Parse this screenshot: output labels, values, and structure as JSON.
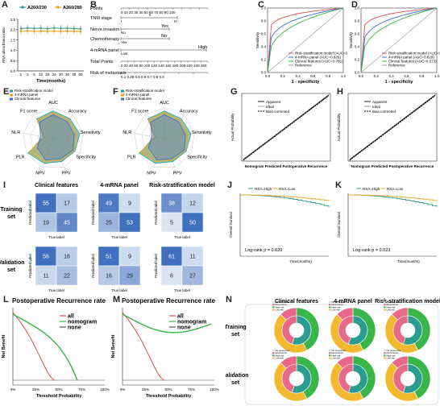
{
  "panels": {
    "A": "A",
    "B": "B",
    "C": "C",
    "D": "D",
    "E": "E",
    "F": "F",
    "G": "G",
    "H": "H",
    "I": "I",
    "J": "J",
    "K": "K",
    "L": "L",
    "M": "M",
    "N": "N"
  },
  "colors": {
    "teal": "#2a9d8f",
    "orange": "#f0a020",
    "red": "#e05050",
    "blue": "#3a6fd0",
    "green": "#39b54a",
    "navy": "#1f3a6e",
    "pink": "#e8688a",
    "yellow": "#f2b92e"
  },
  "chart_data": [
    {
      "id": "A",
      "type": "line",
      "ylabel": "RNA absorbance ratio",
      "xlabel": "Time(months)",
      "x": [
        1,
        3,
        6,
        12,
        18,
        24,
        30,
        36,
        48,
        60
      ],
      "ylim": [
        0.0,
        2.5
      ],
      "yticks": [
        "0.0",
        "0.5",
        "1.0",
        "1.5",
        "2.0",
        "2.5"
      ],
      "xticks": [
        "1",
        "3",
        "6",
        "12",
        "18",
        "24",
        "30",
        "36",
        "48",
        "60"
      ],
      "series": [
        {
          "name": "A260/230",
          "values": [
            2.05,
            2.08,
            2.06,
            2.07,
            2.05,
            2.08,
            2.06,
            2.07,
            2.05,
            2.04
          ]
        },
        {
          "name": "A260/280",
          "values": [
            1.92,
            1.94,
            1.92,
            1.93,
            1.92,
            1.93,
            1.92,
            1.93,
            1.92,
            1.91
          ]
        }
      ]
    },
    {
      "id": "B",
      "type": "table",
      "rows": [
        {
          "label": "Points",
          "scale": "0 10 20 30 40 50 60 70 80 90 100"
        },
        {
          "label": "TNM stage",
          "levels": [
            "II",
            "I",
            "III"
          ]
        },
        {
          "label": "Nerve.invasion",
          "levels": [
            "No",
            "Yes"
          ]
        },
        {
          "label": "Chemotherapy",
          "levels": [
            "Yes",
            "No"
          ]
        },
        {
          "label": "4-mRNA panel",
          "levels": [
            "Low",
            "High"
          ]
        },
        {
          "label": "Total Points",
          "scale": "0 20 40 60 80 100 120 140 160 180 200 220 240 260"
        },
        {
          "label": "Risk of metastasis",
          "scale": "0.1 0.25 0.5 0.6 0.7 0.8 0.9"
        }
      ]
    },
    {
      "id": "C",
      "type": "line",
      "xlabel": "1 - specificity",
      "ylabel": "Sensitivity",
      "xlim": [
        0,
        1
      ],
      "ylim": [
        0,
        1
      ],
      "legend": [
        "Risk-stratification model (AUC=0.880)",
        "4-mRNA panel (AUC=0.826)",
        "Clinical features (AUC=0.781)",
        "Reference"
      ]
    },
    {
      "id": "D",
      "type": "line",
      "xlabel": "1 - specificity",
      "ylabel": "Sensitivity",
      "xlim": [
        0,
        1
      ],
      "ylim": [
        0,
        1
      ],
      "legend": [
        "Risk-stratification model (AUC=0.900)",
        "4-mRNA panel (AUC=0.829)",
        "Clinical features (AUC=0.673)",
        "Reference"
      ]
    },
    {
      "id": "E",
      "type": "radar",
      "axes": [
        "AUC",
        "Accuracy",
        "Sensitivity",
        "Specificity",
        "PPV",
        "NPV",
        "PLR",
        "NLR",
        "F1 score"
      ],
      "legend": [
        "Risk-stratification model",
        "4-mRNA panel",
        "Clinical features"
      ]
    },
    {
      "id": "F",
      "type": "radar",
      "axes": [
        "AUC",
        "Accuracy",
        "Sensitivity",
        "Specificity",
        "PPV",
        "NPV",
        "PLR",
        "NLR",
        "F1 score"
      ],
      "legend": [
        "Risk-stratification model",
        "4-mRNA panel",
        "Clinical features"
      ]
    },
    {
      "id": "G",
      "type": "line",
      "xlabel": "Nomogram Predicted Postoperative Recurrence",
      "ylabel": "Actual Probability",
      "legend": [
        "Apparent",
        "Ideal",
        "Bias-corrected"
      ]
    },
    {
      "id": "H",
      "type": "line",
      "xlabel": "Nomogram Predicted Postoperative Recurrence",
      "ylabel": "Actual Probability",
      "legend": [
        "Apparent",
        "Ideal",
        "Bias-corrected"
      ]
    },
    {
      "id": "I",
      "type": "heatmap",
      "columns": [
        "Clinical features",
        "4-mRNA panel",
        "Risk-stratification model"
      ],
      "rows": [
        "Training set",
        "Validation set"
      ],
      "xlabel": "True label",
      "ylabel": "Predicted label",
      "matrices": [
        [
          [
            55,
            17,
            19,
            45
          ],
          [
            49,
            9,
            25,
            53
          ],
          [
            38,
            12,
            5,
            50
          ]
        ],
        [
          [
            56,
            16,
            11,
            22
          ],
          [
            51,
            9,
            16,
            29
          ],
          [
            61,
            11,
            6,
            27
          ]
        ]
      ]
    },
    {
      "id": "J",
      "type": "line",
      "xlabel": "Time(months)",
      "ylabel": "Overall Survival",
      "legend": [
        "RSA=High",
        "RSA=Low"
      ],
      "annotation": "Log-rank   p = 0.020"
    },
    {
      "id": "K",
      "type": "line",
      "xlabel": "Time(months)",
      "ylabel": "Overall Survival",
      "legend": [
        "RSA=High",
        "RSA=Low"
      ],
      "annotation": "Log-rank   p = 0.023"
    },
    {
      "id": "L",
      "type": "line",
      "title": "Postoperative Recurrence rate",
      "xlabel": "Threshold Probability",
      "ylabel": "Net Benefit",
      "legend": [
        "all",
        "nomogram",
        "none"
      ],
      "xticks": [
        "0%",
        "25%",
        "50%",
        "75%",
        "100%"
      ]
    },
    {
      "id": "M",
      "type": "line",
      "title": "Postoperative Recurrence rate",
      "xlabel": "Threshold Probability",
      "ylabel": "Net Benefit",
      "legend": [
        "all",
        "nomogram",
        "none"
      ],
      "xticks": [
        "0%",
        "25%",
        "50%",
        "75%",
        "100%"
      ]
    },
    {
      "id": "N",
      "type": "pie",
      "columns": [
        "Clinical features",
        "4-mRNA panel",
        "Risk-stratification model"
      ],
      "rows": [
        "Training set",
        "Validation set"
      ],
      "legend": [
        "No recurrence",
        "Recurrence",
        "High risk",
        "Low risk"
      ]
    }
  ]
}
